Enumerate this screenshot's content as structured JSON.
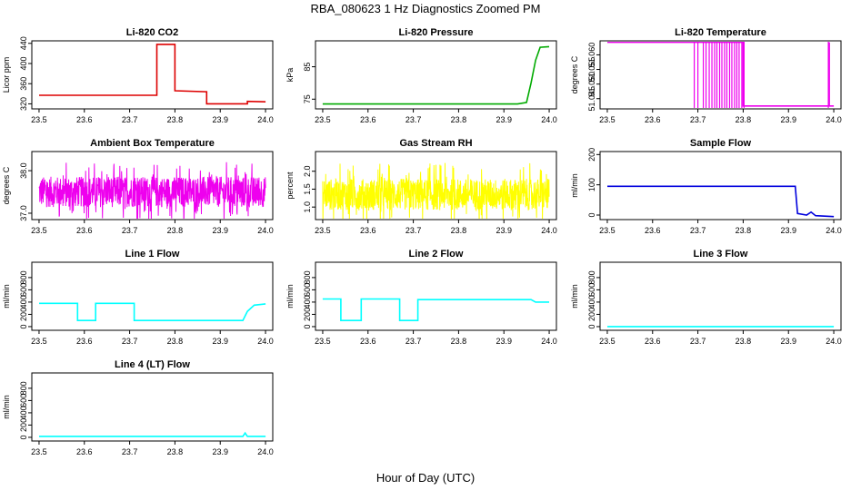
{
  "figure": {
    "title": "RBA_080623  1 Hz Diagnostics Zoomed PM",
    "xlabel": "Hour of Day (UTC)"
  },
  "chart_data": [
    {
      "type": "line",
      "title": "Li-820 CO2",
      "ylabel": "Licor ppm",
      "color": "#dd0000",
      "xlim": [
        23.5,
        24.0
      ],
      "xticks": [
        "23.5",
        "23.6",
        "23.7",
        "23.8",
        "23.9",
        "24.0"
      ],
      "ylim": [
        310,
        445
      ],
      "yticks": [
        "320",
        "360",
        "400",
        "440"
      ],
      "series": [
        {
          "name": "CO2",
          "points": [
            [
              23.5,
              337
            ],
            [
              23.76,
              337
            ],
            [
              23.76,
              438
            ],
            [
              23.8,
              438
            ],
            [
              23.8,
              346
            ],
            [
              23.87,
              344
            ],
            [
              23.87,
              320
            ],
            [
              23.96,
              320
            ],
            [
              23.96,
              325
            ],
            [
              24.0,
              324
            ]
          ]
        }
      ]
    },
    {
      "type": "line",
      "title": "Li-820 Pressure",
      "ylabel": "kPa",
      "color": "#00aa00",
      "xlim": [
        23.5,
        24.0
      ],
      "xticks": [
        "23.5",
        "23.6",
        "23.7",
        "23.8",
        "23.9",
        "24.0"
      ],
      "ylim": [
        72,
        93
      ],
      "yticks": [
        "75",
        "85"
      ],
      "series": [
        {
          "name": "Pressure",
          "points": [
            [
              23.5,
              73.5
            ],
            [
              23.93,
              73.5
            ],
            [
              23.95,
              74
            ],
            [
              23.96,
              80
            ],
            [
              23.97,
              87
            ],
            [
              23.98,
              91
            ],
            [
              24.0,
              91.2
            ]
          ]
        }
      ]
    },
    {
      "type": "line",
      "title": "Li-820 Temperature",
      "ylabel": "degrees C",
      "color": "#ee00ee",
      "xlim": [
        23.5,
        24.0
      ],
      "xticks": [
        "23.5",
        "23.6",
        "23.7",
        "23.8",
        "23.9",
        "24.0"
      ],
      "ylim": [
        51.0415,
        51.0648
      ],
      "yticks": [
        "51.045",
        "51.050",
        "51.055",
        "51.060"
      ],
      "series": [
        {
          "name": "Temperature",
          "points": [
            [
              23.5,
              51.0643
            ],
            [
              23.69,
              51.0643
            ],
            [
              23.8,
              51.0643
            ],
            [
              23.8,
              51.0425
            ],
            [
              23.99,
              51.0425
            ],
            [
              23.99,
              51.0643
            ],
            [
              23.99,
              51.0425
            ],
            [
              24.0,
              51.0425
            ]
          ]
        }
      ],
      "spikes": [
        23.692,
        23.7,
        23.712,
        23.718,
        23.725,
        23.731,
        23.737,
        23.742,
        23.748,
        23.753,
        23.759,
        23.764,
        23.77,
        23.775,
        23.781,
        23.786,
        23.791,
        23.797,
        23.802,
        23.988
      ]
    },
    {
      "type": "line",
      "title": "Ambient Box Temperature",
      "ylabel": "degrees C",
      "color": "#ee00ee",
      "xlim": [
        23.5,
        24.0
      ],
      "xticks": [
        "23.5",
        "23.6",
        "23.7",
        "23.8",
        "23.9",
        "24.0"
      ],
      "ylim": [
        36.85,
        38.45
      ],
      "yticks": [
        "37.0",
        "38.0"
      ],
      "noise": {
        "base": 37.5,
        "spread": 0.45
      }
    },
    {
      "type": "line",
      "title": "Gas Stream RH",
      "ylabel": "percent",
      "color": "#ffff00",
      "xlim": [
        23.5,
        24.0
      ],
      "xticks": [
        "23.5",
        "23.6",
        "23.7",
        "23.8",
        "23.9",
        "24.0"
      ],
      "ylim": [
        0.65,
        2.55
      ],
      "yticks": [
        "1.0",
        "1.5",
        "2.0"
      ],
      "noise": {
        "base": 1.35,
        "spread": 0.55
      }
    },
    {
      "type": "line",
      "title": "Sample Flow",
      "ylabel": "ml/min",
      "color": "#0000dd",
      "xlim": [
        23.5,
        24.0
      ],
      "xticks": [
        "23.5",
        "23.6",
        "23.7",
        "23.8",
        "23.9",
        "24.0"
      ],
      "ylim": [
        -15,
        210
      ],
      "yticks": [
        "0",
        "100",
        "200"
      ],
      "series": [
        {
          "name": "Sample Flow",
          "points": [
            [
              23.5,
              95
            ],
            [
              23.915,
              95
            ],
            [
              23.92,
              5
            ],
            [
              23.94,
              0
            ],
            [
              23.95,
              10
            ],
            [
              23.96,
              -2
            ],
            [
              24.0,
              -5
            ]
          ]
        }
      ]
    },
    {
      "type": "line",
      "title": "Line 1 Flow",
      "ylabel": "ml/min",
      "color": "#00ffff",
      "xlim": [
        23.5,
        24.0
      ],
      "xticks": [
        "23.5",
        "23.6",
        "23.7",
        "23.8",
        "23.9",
        "24.0"
      ],
      "ylim": [
        -60,
        1050
      ],
      "yticks": [
        "0",
        "200",
        "400",
        "600",
        "800"
      ],
      "series": [
        {
          "name": "Line 1",
          "points": [
            [
              23.5,
              380
            ],
            [
              23.585,
              380
            ],
            [
              23.585,
              100
            ],
            [
              23.625,
              100
            ],
            [
              23.625,
              380
            ],
            [
              23.71,
              380
            ],
            [
              23.71,
              100
            ],
            [
              23.95,
              100
            ],
            [
              23.96,
              250
            ],
            [
              23.975,
              350
            ],
            [
              24.0,
              370
            ]
          ]
        }
      ]
    },
    {
      "type": "line",
      "title": "Line 2 Flow",
      "ylabel": "ml/min",
      "color": "#00ffff",
      "xlim": [
        23.5,
        24.0
      ],
      "xticks": [
        "23.5",
        "23.6",
        "23.7",
        "23.8",
        "23.9",
        "24.0"
      ],
      "ylim": [
        -60,
        1050
      ],
      "yticks": [
        "0",
        "200",
        "400",
        "600",
        "800"
      ],
      "series": [
        {
          "name": "Line 2",
          "points": [
            [
              23.5,
              450
            ],
            [
              23.54,
              450
            ],
            [
              23.54,
              100
            ],
            [
              23.585,
              100
            ],
            [
              23.585,
              450
            ],
            [
              23.67,
              450
            ],
            [
              23.67,
              100
            ],
            [
              23.71,
              100
            ],
            [
              23.71,
              440
            ],
            [
              23.96,
              440
            ],
            [
              23.97,
              400
            ],
            [
              24.0,
              400
            ]
          ]
        }
      ]
    },
    {
      "type": "line",
      "title": "Line 3 Flow",
      "ylabel": "ml/min",
      "color": "#00ffff",
      "xlim": [
        23.5,
        24.0
      ],
      "xticks": [
        "23.5",
        "23.6",
        "23.7",
        "23.8",
        "23.9",
        "24.0"
      ],
      "ylim": [
        -60,
        1050
      ],
      "yticks": [
        "0",
        "200",
        "400",
        "600",
        "800"
      ],
      "series": [
        {
          "name": "Line 3",
          "points": [
            [
              23.5,
              0
            ],
            [
              24.0,
              0
            ]
          ]
        }
      ]
    },
    {
      "type": "line",
      "title": "Line 4 (LT) Flow",
      "ylabel": "ml/min",
      "color": "#00ffff",
      "xlim": [
        23.5,
        24.0
      ],
      "xticks": [
        "23.5",
        "23.6",
        "23.7",
        "23.8",
        "23.9",
        "24.0"
      ],
      "ylim": [
        -60,
        1050
      ],
      "yticks": [
        "0",
        "200",
        "400",
        "600",
        "800"
      ],
      "series": [
        {
          "name": "Line 4",
          "points": [
            [
              23.5,
              15
            ],
            [
              23.95,
              15
            ],
            [
              23.955,
              70
            ],
            [
              23.96,
              15
            ],
            [
              24.0,
              15
            ]
          ]
        }
      ]
    }
  ]
}
